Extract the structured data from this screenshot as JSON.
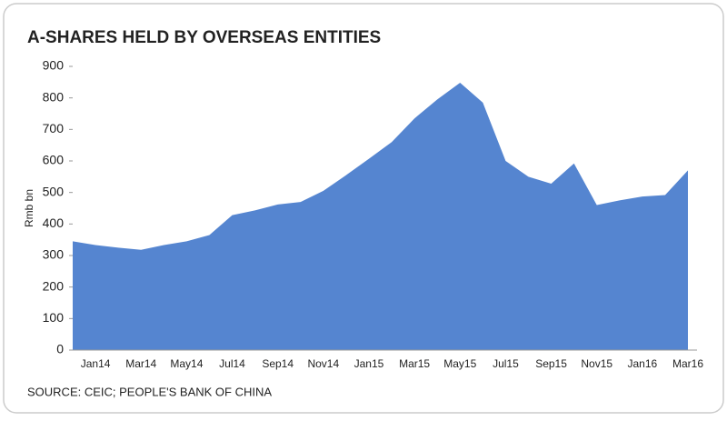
{
  "chart_data": {
    "type": "area",
    "title": "A-SHARES HELD BY OVERSEAS ENTITIES",
    "y_label": "Rmb bn",
    "source": "SOURCE: CEIC; PEOPLE'S BANK OF CHINA",
    "categories": [
      null,
      "Jan14",
      null,
      "Mar14",
      null,
      "May14",
      null,
      "Jul14",
      null,
      "Sep14",
      null,
      "Nov14",
      null,
      "Jan15",
      null,
      "Mar15",
      null,
      "May15",
      null,
      "Jul15",
      null,
      "Sep15",
      null,
      "Nov15",
      null,
      "Jan16",
      null,
      "Mar16"
    ],
    "values": [
      345,
      333,
      325,
      318,
      333,
      345,
      365,
      428,
      443,
      462,
      470,
      505,
      555,
      607,
      660,
      735,
      795,
      848,
      785,
      600,
      550,
      528,
      592,
      460,
      475,
      487,
      492,
      570
    ],
    "color": "#5585d0",
    "ylim": [
      0,
      900
    ],
    "yticks": [
      0,
      100,
      200,
      300,
      400,
      500,
      600,
      700,
      800,
      900
    ]
  }
}
